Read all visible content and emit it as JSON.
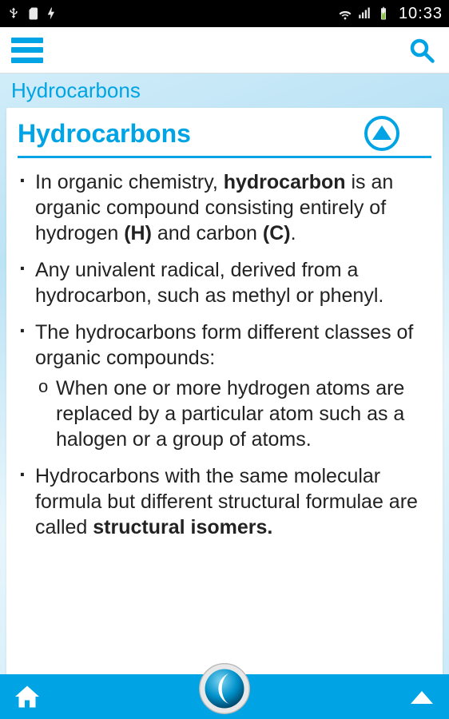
{
  "status": {
    "time": "10:33"
  },
  "colors": {
    "accent": "#00a4e4",
    "background_gradient": [
      "#d8f0fb",
      "#bce3f5",
      "#e8f6fc",
      "#c7e8f7"
    ],
    "text": "#222222",
    "statusbar_bg": "#000000"
  },
  "breadcrumb": {
    "title": "Hydrocarbons"
  },
  "card": {
    "title": "Hydrocarbons",
    "bullets": [
      {
        "segments": [
          {
            "text": "In organic chemistry, ",
            "bold": false
          },
          {
            "text": "hydrocarbon",
            "bold": true
          },
          {
            "text": " is an organic compound consisting entirely of hydrogen ",
            "bold": false
          },
          {
            "text": "(H)",
            "bold": true
          },
          {
            "text": " and carbon ",
            "bold": false
          },
          {
            "text": "(C)",
            "bold": true
          },
          {
            "text": ".",
            "bold": false
          }
        ]
      },
      {
        "segments": [
          {
            "text": "Any univalent radical, derived from a hydrocarbon, such as methyl or phenyl.",
            "bold": false
          }
        ]
      },
      {
        "segments": [
          {
            "text": "The hydrocarbons form different classes of organic compounds:",
            "bold": false
          }
        ],
        "sub": [
          {
            "segments": [
              {
                "text": "When one or more hydrogen atoms are replaced by a particular atom such as a halogen or a group of atoms.",
                "bold": false
              }
            ]
          }
        ]
      },
      {
        "segments": [
          {
            "text": "Hydrocarbons with the same molecular formula but different structural formulae are called ",
            "bold": false
          },
          {
            "text": "structural isomers.",
            "bold": true
          }
        ]
      }
    ]
  }
}
